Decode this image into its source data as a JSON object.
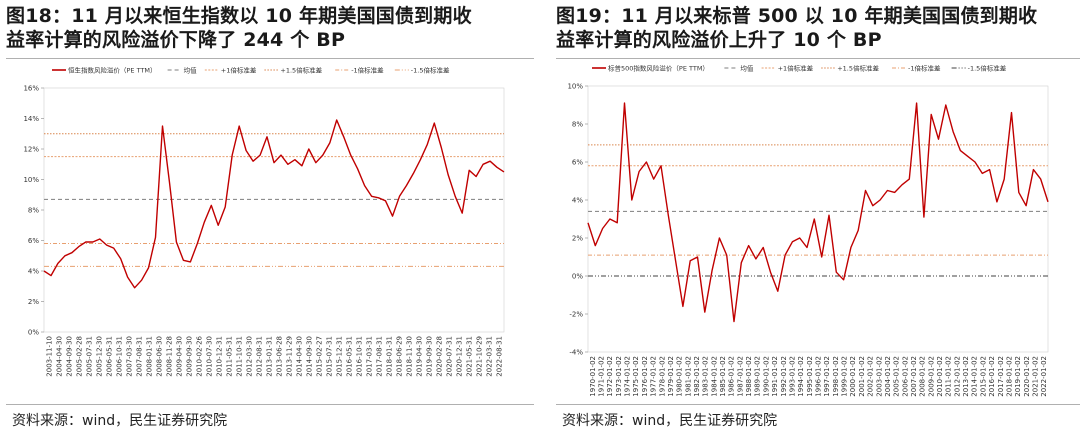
{
  "charts": [
    {
      "id": "left",
      "title": "图18：11 月以来恒生指数以 10 年期美国国债到期收\n益率计算的风险溢价下降了 244 个 BP",
      "source": "资料来源：wind，民生证券研究院",
      "chart_data": {
        "type": "line",
        "title": "图18：11 月以来恒生指数以 10 年期美国国债到期收益率计算的风险溢价下降了 244 个 BP",
        "ylim": [
          0,
          16
        ],
        "yticks": [
          "0%",
          "2%",
          "4%",
          "6%",
          "8%",
          "10%",
          "12%",
          "14%",
          "16%"
        ],
        "ytick_values": [
          0,
          2,
          4,
          6,
          8,
          10,
          12,
          14,
          16
        ],
        "xtick_labels": [
          "2003-11-10",
          "2004-04-30",
          "2004-09-30",
          "2005-02-28",
          "2005-07-31",
          "2005-12-30",
          "2006-05-31",
          "2006-10-31",
          "2007-03-30",
          "2007-08-31",
          "2008-01-31",
          "2008-06-30",
          "2008-11-28",
          "2009-04-30",
          "2009-09-30",
          "2010-02-26",
          "2010-07-30",
          "2010-12-31",
          "2011-05-31",
          "2011-10-31",
          "2012-03-30",
          "2012-08-31",
          "2013-01-31",
          "2013-06-28",
          "2013-11-29",
          "2014-04-30",
          "2014-09-30",
          "2015-02-27",
          "2015-07-31",
          "2015-12-31",
          "2016-05-31",
          "2016-10-31",
          "2017-03-31",
          "2017-08-31",
          "2018-01-31",
          "2018-06-29",
          "2018-11-30",
          "2019-04-30",
          "2019-09-30",
          "2020-02-28",
          "2020-07-31",
          "2020-12-31",
          "2021-05-31",
          "2021-10-29",
          "2022-03-31",
          "2022-08-31"
        ],
        "legend_position": "top",
        "series": [
          {
            "name": "恒生指数风险溢价（PE TTM）",
            "kind": "line",
            "color": "#c00000"
          },
          {
            "name": "均值",
            "kind": "hline",
            "value": 8.7,
            "color": "#7f7f7f",
            "dash": "4,3"
          },
          {
            "name": "+1倍标准差",
            "kind": "hline",
            "value": 11.5,
            "color": "#e8a070",
            "dash": "2,1.5"
          },
          {
            "name": "+1.5倍标准差",
            "kind": "hline",
            "value": 13.0,
            "color": "#d9864e",
            "dash": "1.5,1.5"
          },
          {
            "name": "-1倍标准差",
            "kind": "hline",
            "value": 5.8,
            "color": "#e8a070",
            "dash": "4,2,1,2"
          },
          {
            "name": "-1.5倍标准差",
            "kind": "hline",
            "value": 4.3,
            "color": "#e8a070",
            "dash": "5,2,1,2,1,2"
          }
        ],
        "values": [
          4.0,
          3.7,
          4.5,
          5.0,
          5.2,
          5.6,
          5.9,
          5.9,
          6.1,
          5.7,
          5.5,
          4.8,
          3.6,
          2.9,
          3.4,
          4.2,
          6.2,
          13.5,
          9.8,
          5.9,
          4.7,
          4.6,
          5.8,
          7.2,
          8.3,
          7.0,
          8.2,
          11.6,
          13.5,
          11.9,
          11.2,
          11.6,
          12.8,
          11.1,
          11.6,
          11.0,
          11.3,
          10.9,
          12.0,
          11.1,
          11.6,
          12.4,
          13.9,
          12.8,
          11.6,
          10.7,
          9.6,
          8.9,
          8.8,
          8.6,
          7.6,
          8.9,
          9.6,
          10.4,
          11.3,
          12.3,
          13.7,
          12.1,
          10.3,
          8.9,
          7.8,
          10.6,
          10.2,
          11.0,
          11.2,
          10.8,
          10.5
        ]
      }
    },
    {
      "id": "right",
      "title": "图19：11 月以来标普 500 以 10 年期美国国债到期收\n益率计算的风险溢价上升了 10 个 BP",
      "source": "资料来源：wind，民生证券研究院",
      "chart_data": {
        "type": "line",
        "title": "图19：11 月以来标普 500 以 10 年期美国国债到期收益率计算的风险溢价上升了 10 个 BP",
        "ylim": [
          -4,
          10
        ],
        "yticks": [
          "-4%",
          "-2%",
          "0%",
          "2%",
          "4%",
          "6%",
          "8%",
          "10%"
        ],
        "ytick_values": [
          -4,
          -2,
          0,
          2,
          4,
          6,
          8,
          10
        ],
        "xtick_labels": [
          "1970-01-02",
          "1971-01-02",
          "1972-01-02",
          "1973-01-02",
          "1974-01-02",
          "1975-01-02",
          "1976-01-02",
          "1977-01-02",
          "1978-01-02",
          "1979-01-02",
          "1980-01-02",
          "1981-01-02",
          "1982-01-02",
          "1983-01-02",
          "1984-01-02",
          "1985-01-02",
          "1986-01-02",
          "1987-01-02",
          "1988-01-02",
          "1989-01-02",
          "1990-01-02",
          "1991-01-02",
          "1992-01-02",
          "1993-01-02",
          "1994-01-02",
          "1995-01-02",
          "1996-01-02",
          "1997-01-02",
          "1998-01-02",
          "1999-01-02",
          "2000-01-02",
          "2001-01-02",
          "2002-01-02",
          "2003-01-02",
          "2004-01-02",
          "2005-01-02",
          "2006-01-02",
          "2007-01-02",
          "2008-01-02",
          "2009-01-02",
          "2010-01-02",
          "2011-01-02",
          "2012-01-02",
          "2013-01-02",
          "2014-01-02",
          "2015-01-02",
          "2016-01-02",
          "2017-01-02",
          "2018-01-02",
          "2019-01-02",
          "2020-01-02",
          "2021-01-02",
          "2022-01-02"
        ],
        "legend_position": "top",
        "series": [
          {
            "name": "标普500指数风险溢价（PE TTM）",
            "kind": "line",
            "color": "#c00000"
          },
          {
            "name": "均值",
            "kind": "hline",
            "value": 3.4,
            "color": "#7f7f7f",
            "dash": "4,3"
          },
          {
            "name": "+1倍标准差",
            "kind": "hline",
            "value": 5.8,
            "color": "#e8a070",
            "dash": "2,1.5"
          },
          {
            "name": "+1.5倍标准差",
            "kind": "hline",
            "value": 6.9,
            "color": "#d9864e",
            "dash": "1.5,1.5"
          },
          {
            "name": "-1倍标准差",
            "kind": "hline",
            "value": 1.1,
            "color": "#e8a070",
            "dash": "4,2,1,2"
          },
          {
            "name": "-1.5倍标准差",
            "kind": "hline",
            "value": 0,
            "color": "#404040",
            "dash": "5,2,1,2,1,2"
          }
        ],
        "values": [
          2.8,
          1.6,
          2.5,
          3.0,
          2.8,
          9.1,
          4.0,
          5.5,
          6.0,
          5.1,
          5.8,
          3.2,
          0.8,
          -1.6,
          0.8,
          1.0,
          -1.9,
          0.3,
          2.0,
          1.1,
          -2.4,
          0.7,
          1.6,
          0.9,
          1.5,
          0.2,
          -0.8,
          1.1,
          1.8,
          2.0,
          1.5,
          3.0,
          1.0,
          3.2,
          0.2,
          -0.2,
          1.5,
          2.4,
          4.5,
          3.7,
          4.0,
          4.5,
          4.4,
          4.8,
          5.1,
          9.1,
          3.1,
          8.5,
          7.2,
          9.0,
          7.6,
          6.6,
          6.3,
          6.0,
          5.4,
          5.6,
          3.9,
          5.1,
          8.6,
          4.4,
          3.7,
          5.6,
          5.1,
          3.9
        ]
      }
    }
  ]
}
